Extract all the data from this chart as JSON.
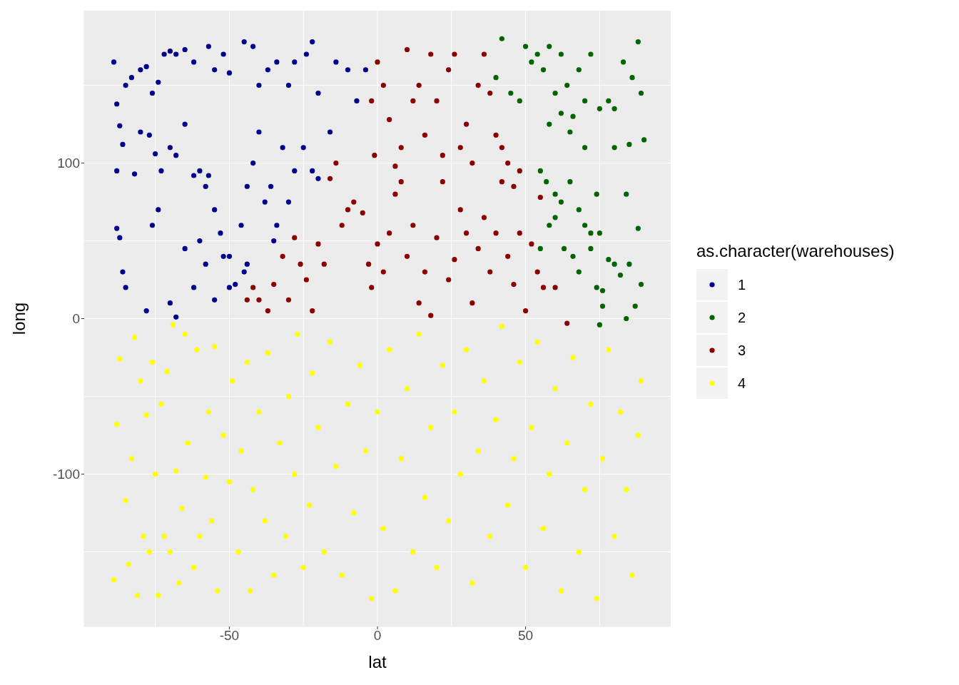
{
  "chart_data": {
    "type": "scatter",
    "xlabel": "lat",
    "ylabel": "long",
    "legend_title": "as.character(warehouses)",
    "legend": "right",
    "grid": true,
    "marker": "circle",
    "xlim": [
      -99,
      99
    ],
    "ylim": [
      -198,
      198
    ],
    "xticks": [
      -50,
      0,
      50
    ],
    "yticks": [
      -100,
      0,
      100
    ],
    "series": [
      {
        "name": "1",
        "color": "#00008b",
        "x": [
          -89,
          -88,
          -87,
          -86,
          -85,
          -83,
          -80,
          -78,
          -76,
          -74,
          -72,
          -70,
          -68,
          -65,
          -62,
          -57,
          -55,
          -52,
          -50,
          -45,
          -42,
          -40,
          -37,
          -34,
          -30,
          -28,
          -24,
          -22,
          -20,
          -16,
          -14,
          -10,
          -7,
          -4,
          -88,
          -88,
          -87,
          -86,
          -85,
          -82,
          -80,
          -77,
          -75,
          -73,
          -70,
          -68,
          -65,
          -62,
          -60,
          -58,
          -55,
          -53,
          -50,
          -48,
          -46,
          -44,
          -42,
          -40,
          -38,
          -36,
          -34,
          -32,
          -30,
          -28,
          -25,
          -22,
          -20,
          -78,
          -76,
          -74,
          -70,
          -68,
          -65,
          -62,
          -58,
          -55,
          -52,
          -50,
          -45,
          -44,
          -57,
          -35,
          -60
        ],
        "values": [
          165,
          138,
          124,
          112,
          150,
          155,
          160,
          162,
          145,
          152,
          170,
          172,
          170,
          173,
          165,
          175,
          160,
          170,
          158,
          178,
          175,
          150,
          160,
          165,
          150,
          165,
          170,
          178,
          145,
          120,
          165,
          160,
          140,
          160,
          95,
          58,
          52,
          30,
          20,
          93,
          120,
          118,
          106,
          95,
          110,
          105,
          125,
          92,
          95,
          85,
          70,
          55,
          40,
          22,
          60,
          85,
          100,
          120,
          75,
          85,
          60,
          110,
          75,
          95,
          110,
          95,
          90,
          5,
          60,
          70,
          10,
          1,
          45,
          20,
          35,
          12,
          40,
          20,
          30,
          35,
          92,
          50,
          50
        ]
      },
      {
        "name": "2",
        "color": "#006400",
        "x": [
          40,
          42,
          45,
          48,
          50,
          52,
          54,
          56,
          58,
          60,
          62,
          64,
          66,
          68,
          70,
          72,
          75,
          78,
          80,
          83,
          86,
          88,
          89,
          90,
          85,
          80,
          58,
          62,
          70,
          65,
          55,
          57,
          60,
          62,
          65,
          68,
          70,
          72,
          74,
          75,
          58,
          55,
          63,
          66,
          68,
          72,
          74,
          76,
          78,
          80,
          82,
          84,
          85,
          87,
          88,
          89,
          84,
          75,
          76,
          60
        ],
        "values": [
          155,
          180,
          145,
          140,
          175,
          165,
          170,
          160,
          175,
          145,
          170,
          150,
          130,
          160,
          140,
          170,
          135,
          140,
          135,
          165,
          155,
          178,
          145,
          115,
          112,
          110,
          125,
          132,
          110,
          120,
          95,
          88,
          80,
          75,
          88,
          70,
          60,
          45,
          80,
          55,
          60,
          45,
          45,
          40,
          30,
          55,
          20,
          18,
          38,
          35,
          28,
          80,
          35,
          8,
          58,
          22,
          0,
          -4,
          8,
          65
        ]
      },
      {
        "name": "3",
        "color": "#8b0000",
        "x": [
          -44,
          -42,
          -40,
          -37,
          -35,
          -32,
          -30,
          -28,
          -26,
          -24,
          -22,
          -20,
          -18,
          -16,
          -14,
          -12,
          -10,
          -8,
          -5,
          -3,
          -2,
          0,
          2,
          4,
          6,
          8,
          10,
          12,
          14,
          16,
          18,
          20,
          22,
          24,
          26,
          28,
          30,
          32,
          34,
          36,
          38,
          40,
          42,
          44,
          46,
          48,
          50,
          52,
          54,
          56,
          60,
          64,
          -2,
          0,
          2,
          4,
          8,
          10,
          12,
          14,
          16,
          18,
          20,
          22,
          24,
          26,
          28,
          30,
          32,
          34,
          36,
          38,
          40,
          42,
          44,
          46,
          48,
          -1,
          6,
          55
        ],
        "values": [
          12,
          20,
          12,
          5,
          22,
          40,
          12,
          52,
          35,
          25,
          5,
          48,
          35,
          90,
          100,
          60,
          70,
          75,
          68,
          35,
          20,
          48,
          30,
          55,
          80,
          88,
          40,
          60,
          10,
          30,
          2,
          52,
          88,
          25,
          38,
          70,
          55,
          10,
          45,
          65,
          30,
          55,
          88,
          40,
          22,
          55,
          5,
          48,
          30,
          20,
          20,
          -3,
          140,
          165,
          150,
          128,
          110,
          173,
          140,
          150,
          118,
          170,
          140,
          105,
          160,
          170,
          110,
          125,
          100,
          150,
          170,
          145,
          118,
          110,
          100,
          85,
          95,
          105,
          98,
          78
        ]
      },
      {
        "name": "4",
        "color": "#ffff00",
        "x": [
          -89,
          -88,
          -87,
          -85,
          -84,
          -83,
          -82,
          -81,
          -80,
          -79,
          -78,
          -77,
          -76,
          -75,
          -74,
          -73,
          -72,
          -71,
          -70,
          -69,
          -68,
          -67,
          -66,
          -65,
          -64,
          -62,
          -61,
          -60,
          -58,
          -57,
          -56,
          -55,
          -54,
          -52,
          -50,
          -49,
          -47,
          -46,
          -44,
          -43,
          -42,
          -40,
          -38,
          -37,
          -35,
          -33,
          -31,
          -30,
          -28,
          -27,
          -25,
          -23,
          -22,
          -20,
          -18,
          -16,
          -14,
          -12,
          -10,
          -8,
          -6,
          -4,
          -2,
          0,
          2,
          4,
          6,
          8,
          10,
          12,
          14,
          16,
          18,
          20,
          22,
          24,
          26,
          28,
          30,
          32,
          34,
          36,
          38,
          40,
          42,
          44,
          46,
          48,
          50,
          52,
          54,
          56,
          58,
          60,
          62,
          64,
          66,
          68,
          70,
          72,
          74,
          76,
          78,
          80,
          82,
          84,
          86,
          88,
          89
        ],
        "values": [
          -168,
          -68,
          -26,
          -117,
          -158,
          -90,
          -12,
          -178,
          -40,
          -140,
          -62,
          -150,
          -28,
          -100,
          -178,
          -55,
          -140,
          -34,
          -150,
          -4,
          -98,
          -170,
          -122,
          -10,
          -80,
          -160,
          -20,
          -140,
          -102,
          -60,
          -130,
          -18,
          -175,
          -75,
          -105,
          -40,
          -150,
          -85,
          -28,
          -175,
          -110,
          -60,
          -130,
          -22,
          -165,
          -80,
          -140,
          -50,
          -100,
          -10,
          -160,
          -120,
          -35,
          -70,
          -150,
          -15,
          -95,
          -165,
          -55,
          -125,
          -30,
          -85,
          -180,
          -60,
          -135,
          -20,
          -175,
          -90,
          -45,
          -150,
          -10,
          -115,
          -70,
          -160,
          -30,
          -130,
          -60,
          -100,
          -20,
          -170,
          -85,
          -40,
          -140,
          -65,
          -5,
          -120,
          -90,
          -28,
          -160,
          -70,
          -15,
          -135,
          -100,
          -45,
          -175,
          -80,
          -25,
          -150,
          -110,
          -55,
          -180,
          -90,
          -20,
          -140,
          -60,
          -110,
          -165,
          -75,
          -40
        ]
      }
    ]
  }
}
